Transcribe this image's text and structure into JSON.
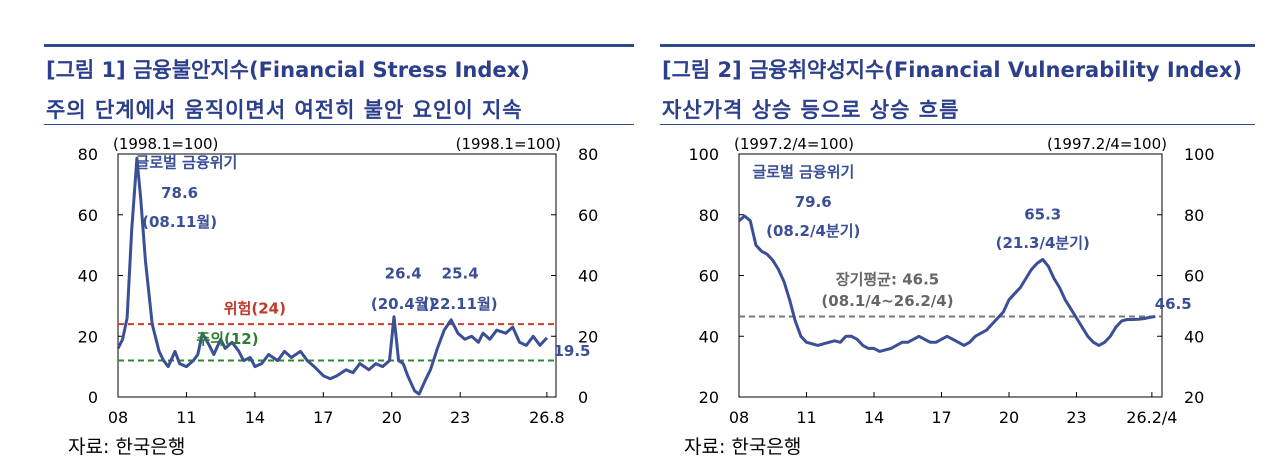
{
  "charts": [
    {
      "id": "p1",
      "figure_title": "[그림 1] 금융불안지수(Financial Stress Index)",
      "subtitle": "주의 단계에서 움직이면서 여전히 불안 요인이 지속",
      "source": "자료: 한국은행",
      "base_left": "(1998.1=100)",
      "base_right": "(1998.1=100)",
      "line_color": "#3a4f96",
      "annotations": [
        {
          "text": "글로벌 금융위기",
          "x": 11.0,
          "y": 75.5,
          "color": "#3a4f96",
          "bold": true
        },
        {
          "text": "78.6",
          "x": 10.7,
          "y": 65.5,
          "color": "#3a4f96",
          "bold": true
        },
        {
          "text": "(08.11월)",
          "x": 10.7,
          "y": 56.0,
          "color": "#3a4f96",
          "bold": true
        },
        {
          "text": "26.4",
          "x": 20.5,
          "y": 39.0,
          "color": "#3a4f96",
          "bold": true
        },
        {
          "text": "(20.4월)",
          "x": 20.5,
          "y": 29.0,
          "color": "#3a4f96",
          "bold": true
        },
        {
          "text": "25.4",
          "x": 23.0,
          "y": 39.0,
          "color": "#3a4f96",
          "bold": true
        },
        {
          "text": "(22.11월)",
          "x": 23.0,
          "y": 29.0,
          "color": "#3a4f96",
          "bold": true
        },
        {
          "text": "위험(24)",
          "x": 14.0,
          "y": 27.5,
          "color": "#c0392b",
          "bold": true
        },
        {
          "text": "주의(12)",
          "x": 12.8,
          "y": 17.5,
          "color": "#2e7d32",
          "bold": true
        },
        {
          "text": "19.5",
          "x": 27.9,
          "y": 13.5,
          "color": "#3a4f96",
          "bold": true
        }
      ],
      "chart_data": {
        "type": "line",
        "xlim": [
          8,
          27.2
        ],
        "ylim": [
          0,
          80
        ],
        "x_ticks": [
          8,
          11,
          14,
          17,
          20,
          23,
          26.8
        ],
        "x_tick_labels": [
          "08",
          "11",
          "14",
          "17",
          "20",
          "23",
          "26.8"
        ],
        "y_ticks": [
          0,
          20,
          40,
          60,
          80
        ],
        "y_tick_labels": [
          "0",
          "20",
          "40",
          "60",
          "80"
        ],
        "y2_tick_labels": [
          "0",
          "20",
          "40",
          "60",
          "80"
        ],
        "reference_lines": [
          {
            "value": 24,
            "color": "#d0392b"
          },
          {
            "value": 12,
            "color": "#2e8a2e"
          }
        ],
        "series": [
          {
            "x": [
              8.0,
              8.2,
              8.4,
              8.6,
              8.83,
              9.0,
              9.2,
              9.5,
              9.8,
              10.0,
              10.2,
              10.5,
              10.7,
              11.0,
              11.3,
              11.5,
              11.7,
              12.0,
              12.2,
              12.5,
              12.7,
              13.0,
              13.3,
              13.5,
              13.8,
              14.0,
              14.3,
              14.6,
              15.0,
              15.3,
              15.6,
              16.0,
              16.3,
              16.6,
              17.0,
              17.3,
              17.6,
              18.0,
              18.3,
              18.6,
              19.0,
              19.3,
              19.6,
              19.9,
              20.1,
              20.3,
              20.5,
              20.7,
              21.0,
              21.2,
              21.5,
              21.7,
              22.0,
              22.3,
              22.6,
              22.9,
              23.2,
              23.5,
              23.8,
              24.0,
              24.3,
              24.6,
              25.0,
              25.3,
              25.6,
              25.9,
              26.2,
              26.5,
              26.8
            ],
            "y": [
              16,
              19,
              26,
              55,
              78.6,
              65,
              45,
              24,
              15,
              12,
              10,
              15,
              11,
              10,
              12,
              14,
              21,
              17,
              14,
              19,
              16,
              18,
              15,
              12,
              13,
              10,
              11,
              14,
              12,
              15,
              13,
              15,
              12,
              10,
              7,
              6,
              7,
              9,
              8,
              11,
              9,
              11,
              10,
              12,
              26.4,
              12,
              11,
              7,
              2,
              1,
              6,
              9,
              16,
              22,
              25.4,
              21,
              19,
              20,
              18,
              21,
              19,
              22,
              21,
              23,
              18,
              17,
              20,
              17,
              19.5
            ]
          }
        ]
      }
    },
    {
      "id": "p2",
      "figure_title": "[그림 2] 금융취약성지수(Financial Vulnerability Index)",
      "subtitle": "자산가격 상승 등으로 상승 흐름",
      "source": "자료: 한국은행",
      "base_left": "(1997.2/4=100)",
      "base_right": "(1997.2/4=100)",
      "line_color": "#3a4f96",
      "annotations": [
        {
          "text": "글로벌 금융위기",
          "x": 8.6,
          "y": 92.5,
          "color": "#3a4f96",
          "bold": true,
          "anchor": "start"
        },
        {
          "text": "79.6",
          "x": 11.3,
          "y": 82.5,
          "color": "#3a4f96",
          "bold": true
        },
        {
          "text": "(08.2/4분기)",
          "x": 11.3,
          "y": 73.0,
          "color": "#3a4f96",
          "bold": true
        },
        {
          "text": "65.3",
          "x": 21.5,
          "y": 78.5,
          "color": "#3a4f96",
          "bold": true
        },
        {
          "text": "(21.3/4분기)",
          "x": 21.5,
          "y": 69.0,
          "color": "#3a4f96",
          "bold": true
        },
        {
          "text": "장기평균: 46.5",
          "x": 14.6,
          "y": 57.0,
          "color": "#666666",
          "bold": true
        },
        {
          "text": "(08.1/4~26.2/4)",
          "x": 14.6,
          "y": 50.0,
          "color": "#666666",
          "bold": true
        },
        {
          "text": "46.5",
          "x": 27.3,
          "y": 49.0,
          "color": "#3a4f96",
          "bold": true
        }
      ],
      "chart_data": {
        "type": "line",
        "xlim": [
          8,
          26.8
        ],
        "ylim": [
          20,
          100
        ],
        "x_ticks": [
          8,
          11,
          14,
          17,
          20,
          23,
          26.35
        ],
        "x_tick_labels": [
          "08",
          "11",
          "14",
          "17",
          "20",
          "23",
          "26.2/4"
        ],
        "y_ticks": [
          20,
          40,
          60,
          80,
          100
        ],
        "y_tick_labels": [
          "20",
          "40",
          "60",
          "80",
          "100"
        ],
        "y2_tick_labels": [
          "20",
          "40",
          "60",
          "80",
          "100"
        ],
        "reference_lines": [
          {
            "value": 46.5,
            "color": "#777777"
          }
        ],
        "series": [
          {
            "x": [
              8.0,
              8.25,
              8.5,
              8.75,
              9.0,
              9.25,
              9.5,
              9.75,
              10.0,
              10.25,
              10.5,
              10.75,
              11.0,
              11.25,
              11.5,
              11.75,
              12.0,
              12.25,
              12.5,
              12.75,
              13.0,
              13.25,
              13.5,
              13.75,
              14.0,
              14.25,
              14.5,
              14.75,
              15.0,
              15.25,
              15.5,
              15.75,
              16.0,
              16.25,
              16.5,
              16.75,
              17.0,
              17.25,
              17.5,
              17.75,
              18.0,
              18.25,
              18.5,
              18.75,
              19.0,
              19.25,
              19.5,
              19.75,
              20.0,
              20.25,
              20.5,
              20.75,
              21.0,
              21.25,
              21.5,
              21.75,
              22.0,
              22.25,
              22.5,
              22.75,
              23.0,
              23.25,
              23.5,
              23.75,
              24.0,
              24.25,
              24.5,
              24.75,
              25.0,
              25.25,
              25.5,
              25.75,
              26.0,
              26.25,
              26.5
            ],
            "y": [
              78,
              79.6,
              78,
              70,
              68,
              67,
              65,
              62,
              58,
              52,
              45,
              40,
              38,
              37.5,
              37,
              37.5,
              38,
              38.5,
              38,
              40,
              40,
              39,
              37,
              36,
              36,
              35,
              35.5,
              36,
              37,
              38,
              38,
              39,
              40,
              39,
              38,
              38,
              39,
              40,
              39,
              38,
              37,
              38,
              40,
              41,
              42,
              44,
              46,
              48,
              52,
              54,
              56,
              59,
              62,
              64,
              65.3,
              63,
              59,
              56,
              52,
              49,
              46,
              43,
              40,
              38,
              37,
              38,
              40,
              43,
              45,
              45.5,
              45.5,
              45.6,
              45.8,
              46.2,
              46.5
            ]
          }
        ]
      }
    }
  ]
}
